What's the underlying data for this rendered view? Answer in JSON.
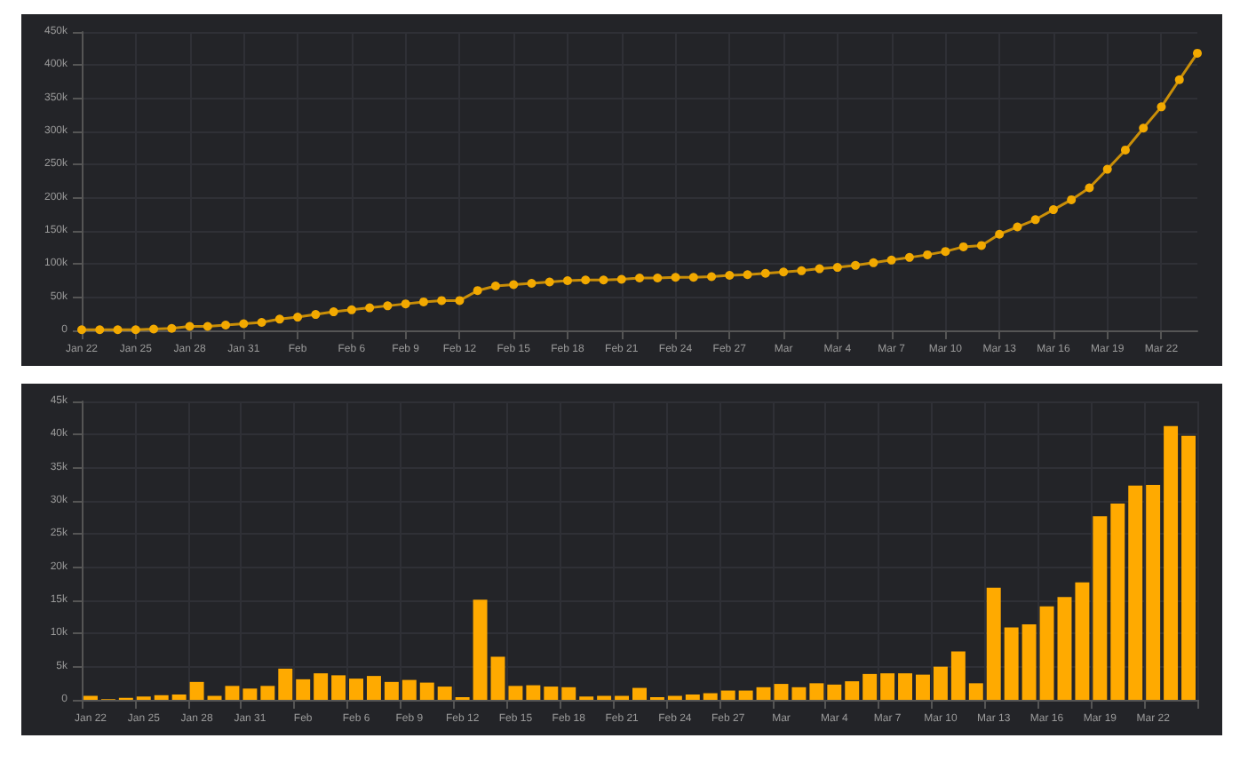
{
  "chart_data": [
    {
      "type": "line",
      "categories": [
        "Jan 22",
        null,
        null,
        "Jan 25",
        null,
        null,
        "Jan 28",
        null,
        null,
        "Jan 31",
        null,
        null,
        "Feb",
        null,
        null,
        "Feb 6",
        null,
        null,
        "Feb 9",
        null,
        null,
        "Feb 12",
        null,
        null,
        "Feb 15",
        null,
        null,
        "Feb 18",
        null,
        null,
        "Feb 21",
        null,
        null,
        "Feb 24",
        null,
        null,
        "Feb 27",
        null,
        null,
        "Mar",
        null,
        null,
        "Mar 4",
        null,
        null,
        "Mar 7",
        null,
        null,
        "Mar 10",
        null,
        null,
        "Mar 13",
        null,
        null,
        "Mar 16",
        null,
        null,
        "Mar 19",
        null,
        null,
        "Mar 22",
        null,
        null
      ],
      "series": [
        {
          "color": "#f2a900",
          "values": [
            1000,
            1000,
            1000,
            1000,
            2000,
            3000,
            6000,
            6000,
            8000,
            10000,
            12000,
            17000,
            20000,
            24000,
            28000,
            31000,
            34000,
            37000,
            40000,
            43000,
            45000,
            45000,
            60000,
            67000,
            69000,
            71000,
            73000,
            75000,
            76000,
            76000,
            77000,
            79000,
            79000,
            80000,
            80000,
            81000,
            83000,
            84000,
            86000,
            88000,
            90000,
            93000,
            95000,
            98000,
            102000,
            106000,
            110000,
            114000,
            119000,
            126000,
            128000,
            145000,
            156000,
            167000,
            182000,
            197000,
            215000,
            243000,
            272000,
            305000,
            337000,
            378000,
            418000
          ]
        }
      ],
      "ylim": [
        0,
        450000
      ],
      "yticks": [
        0,
        {
          "value": 50000,
          "label": "50k"
        },
        {
          "value": 100000,
          "label": "100k"
        },
        {
          "value": 150000,
          "label": "150k"
        },
        {
          "value": 200000,
          "label": "200k"
        },
        {
          "value": 250000,
          "label": "250k"
        },
        {
          "value": 300000,
          "label": "300k"
        },
        {
          "value": 350000,
          "label": "350k"
        },
        {
          "value": 400000,
          "label": "400k"
        },
        {
          "value": 450000,
          "label": "450k"
        }
      ],
      "grid": true,
      "marker": "circle",
      "line_style": "solid"
    },
    {
      "type": "bar",
      "categories": [
        "Jan 22",
        null,
        null,
        "Jan 25",
        null,
        null,
        "Jan 28",
        null,
        null,
        "Jan 31",
        null,
        null,
        "Feb",
        null,
        null,
        "Feb 6",
        null,
        null,
        "Feb 9",
        null,
        null,
        "Feb 12",
        null,
        null,
        "Feb 15",
        null,
        null,
        "Feb 18",
        null,
        null,
        "Feb 21",
        null,
        null,
        "Feb 24",
        null,
        null,
        "Feb 27",
        null,
        null,
        "Mar",
        null,
        null,
        "Mar 4",
        null,
        null,
        "Mar 7",
        null,
        null,
        "Mar 10",
        null,
        null,
        "Mar 13",
        null,
        null,
        "Mar 16",
        null,
        null,
        "Mar 19",
        null,
        null,
        "Mar 22",
        null,
        null
      ],
      "series": [
        {
          "color": "#ffaa00",
          "values": [
            600,
            100,
            300,
            500,
            700,
            800,
            2700,
            600,
            2100,
            1700,
            2100,
            4700,
            3100,
            4000,
            3700,
            3200,
            3600,
            2700,
            3000,
            2600,
            2000,
            400,
            15100,
            6500,
            2100,
            2200,
            2000,
            1900,
            500,
            600,
            600,
            1800,
            400,
            600,
            800,
            1000,
            1400,
            1400,
            1900,
            2400,
            1900,
            2500,
            2300,
            2800,
            3900,
            4000,
            4000,
            3800,
            5000,
            7300,
            2500,
            16900,
            10900,
            11400,
            14100,
            15500,
            17700,
            27700,
            29600,
            32300,
            32400,
            41300,
            39800
          ]
        }
      ],
      "ylim": [
        0,
        45000
      ],
      "yticks": [
        0,
        {
          "value": 5000,
          "label": "5k"
        },
        {
          "value": 10000,
          "label": "10k"
        },
        {
          "value": 15000,
          "label": "15k"
        },
        {
          "value": 20000,
          "label": "20k"
        },
        {
          "value": 25000,
          "label": "25k"
        },
        {
          "value": 30000,
          "label": "30k"
        },
        {
          "value": 35000,
          "label": "35k"
        },
        {
          "value": 40000,
          "label": "40k"
        },
        {
          "value": 45000,
          "label": "45k"
        }
      ],
      "grid": true
    }
  ]
}
